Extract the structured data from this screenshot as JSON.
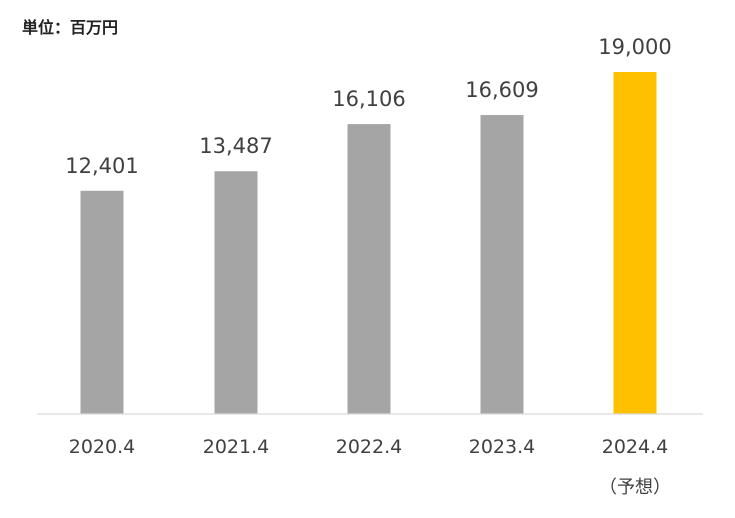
{
  "chart_data": {
    "type": "bar",
    "unit_label": "単位：百万円",
    "categories": [
      "2020.4",
      "2021.4",
      "2022.4",
      "2023.4",
      "2024.4"
    ],
    "category_notes": [
      "",
      "",
      "",
      "",
      "（予想）"
    ],
    "values": [
      12401,
      13487,
      16106,
      16609,
      19000
    ],
    "value_labels": [
      "12,401",
      "13,487",
      "16,106",
      "16,609",
      "19,000"
    ],
    "ylim": [
      0,
      20000
    ],
    "grid": false,
    "colors": {
      "actual": "#a5a5a5",
      "forecast": "#ffc000",
      "axis": "#d9d9d9"
    },
    "forecast_index": 4
  }
}
